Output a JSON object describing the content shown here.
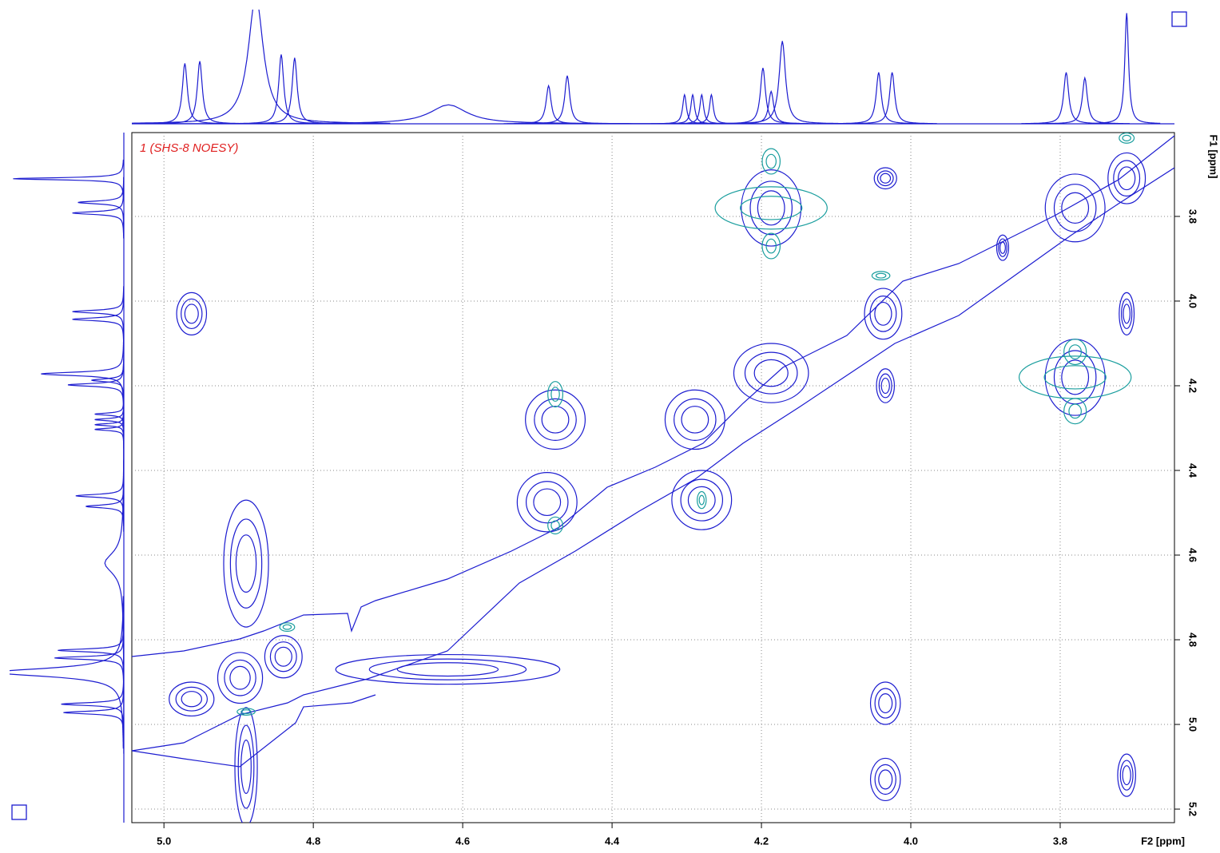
{
  "chart_data": {
    "type": "contour",
    "title": "1 (SHS-8 NOESY)",
    "x_label": "F2 [ppm]",
    "y_label": "F1 [ppm]",
    "xlim": [
      5.043,
      3.647
    ],
    "ylim": [
      3.602,
      5.232
    ],
    "xticks": [
      {
        "value": 5,
        "label": "5.0"
      },
      {
        "value": 4.8,
        "label": "4.8"
      },
      {
        "value": 4.6,
        "label": "4.6"
      },
      {
        "value": 4.4,
        "label": "4.4"
      },
      {
        "value": 4.2,
        "label": "4.2"
      },
      {
        "value": 4,
        "label": "4.0"
      },
      {
        "value": 3.8,
        "label": "3.8"
      }
    ],
    "yticks": [
      {
        "value": 3.8,
        "label": "3.8"
      },
      {
        "value": 4,
        "label": "4.0"
      },
      {
        "value": 4.2,
        "label": "4.2"
      },
      {
        "value": 4.4,
        "label": "4.4"
      },
      {
        "value": 4.6,
        "label": "4.6"
      },
      {
        "value": 4.8,
        "label": "4.8"
      },
      {
        "value": 5,
        "label": "5.0"
      },
      {
        "value": 5.2,
        "label": "5.2"
      }
    ],
    "grid": true,
    "series": [
      {
        "color": "#1c1cd0",
        "x": [
          4.963,
          4.898,
          4.84,
          4.89,
          4.62,
          4.487,
          4.476,
          4.289,
          4.28,
          4.187,
          4.037,
          4.034,
          4.963,
          4.187,
          3.78,
          3.78,
          3.711,
          3.711,
          4.034,
          4.034,
          3.711,
          4.89,
          3.877,
          4.034
        ],
        "y": [
          4.94,
          4.89,
          4.84,
          4.62,
          4.87,
          4.475,
          4.28,
          4.28,
          4.47,
          4.17,
          4.03,
          3.71,
          4.03,
          3.78,
          4.18,
          3.78,
          3.71,
          4.03,
          4.95,
          5.13,
          5.12,
          5.1,
          3.874,
          4.2
        ],
        "x_width": [
          0.03,
          0.03,
          0.025,
          0.03,
          0.15,
          0.04,
          0.04,
          0.04,
          0.04,
          0.05,
          0.025,
          0.015,
          0.02,
          0.04,
          0.04,
          0.04,
          0.025,
          0.01,
          0.02,
          0.02,
          0.012,
          0.015,
          0.008,
          0.012
        ],
        "y_width": [
          0.04,
          0.06,
          0.05,
          0.15,
          0.035,
          0.07,
          0.07,
          0.07,
          0.07,
          0.07,
          0.06,
          0.025,
          0.05,
          0.09,
          0.09,
          0.08,
          0.06,
          0.05,
          0.05,
          0.05,
          0.05,
          0.14,
          0.03,
          0.04
        ]
      },
      {
        "color": "#1a9e9e",
        "x": [
          4.187,
          3.78,
          4.187,
          4.187,
          3.78,
          3.78,
          4.476,
          4.476,
          4.28,
          4.835,
          4.89,
          4.04,
          3.711
        ],
        "y": [
          3.78,
          4.18,
          3.67,
          3.87,
          4.12,
          4.26,
          4.22,
          4.53,
          4.47,
          4.77,
          4.97,
          3.94,
          3.615
        ],
        "x_width": [
          0.075,
          0.075,
          0.012,
          0.012,
          0.015,
          0.015,
          0.01,
          0.01,
          0.006,
          0.01,
          0.012,
          0.012,
          0.01
        ],
        "y_width": [
          0.05,
          0.05,
          0.03,
          0.03,
          0.03,
          0.03,
          0.03,
          0.02,
          0.02,
          0.01,
          0.008,
          0.01,
          0.012
        ]
      }
    ],
    "projection": {
      "color": "#1c1cd0",
      "x": [
        4.972,
        4.952,
        4.877,
        4.843,
        4.825,
        4.619,
        4.485,
        4.46,
        4.303,
        4.292,
        4.28,
        4.267,
        4.198,
        4.187,
        4.172,
        4.043,
        4.025,
        3.792,
        3.767,
        3.711
      ],
      "height": [
        54,
        56,
        115,
        62,
        59,
        17,
        34,
        43,
        26,
        26,
        26,
        26,
        50,
        29,
        74,
        46,
        46,
        46,
        41,
        99
      ],
      "width": [
        0.004,
        0.004,
        0.012,
        0.004,
        0.004,
        0.03,
        0.004,
        0.004,
        0.003,
        0.003,
        0.003,
        0.003,
        0.004,
        0.004,
        0.005,
        0.004,
        0.004,
        0.004,
        0.004,
        0.003
      ]
    }
  }
}
